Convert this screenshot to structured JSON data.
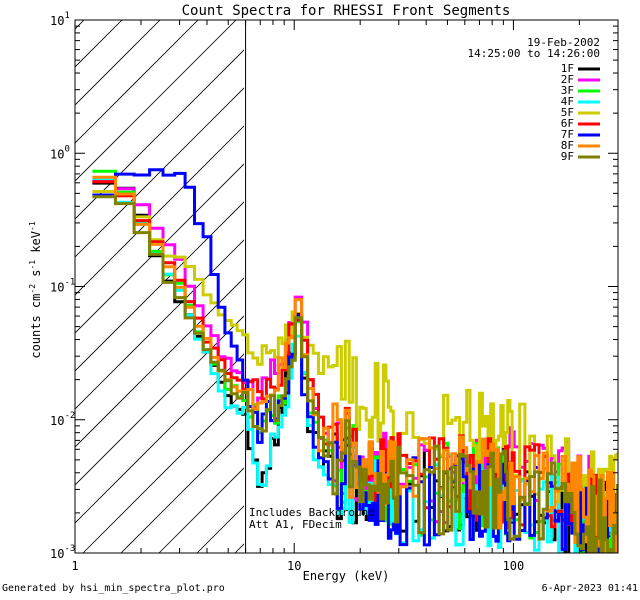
{
  "chart_data": {
    "type": "line",
    "title": "Count Spectra for RHESSI Front Segments",
    "xlabel": "Energy (keV)",
    "ylabel_main": "counts cm",
    "ylabel_sup1": "-2",
    "ylabel_mid1": " s",
    "ylabel_sup2": "-1",
    "ylabel_mid2": " keV",
    "ylabel_sup3": "-1",
    "x_scale": "log",
    "y_scale": "log",
    "xlim": [
      1,
      300
    ],
    "ylim": [
      0.001,
      10
    ],
    "x_ticks": [
      {
        "value": 1,
        "label": "1"
      },
      {
        "value": 10,
        "label": "10"
      },
      {
        "value": 100,
        "label": "100"
      }
    ],
    "y_ticks": [
      {
        "value": 10,
        "base": "10",
        "exp": "1"
      },
      {
        "value": 1,
        "base": "10",
        "exp": "0"
      },
      {
        "value": 0.1,
        "base": "10",
        "exp": "-1"
      },
      {
        "value": 0.01,
        "base": "10",
        "exp": "-2"
      },
      {
        "value": 0.001,
        "base": "10",
        "exp": "-3"
      }
    ],
    "date": "19-Feb-2002",
    "time_range": "14:25:00 to 14:26:00",
    "annotation_line1": "Includes Background",
    "annotation_line2": "Att A1, FDecim",
    "excluded_region_max_kev": 6,
    "series": [
      {
        "name": "1F",
        "color": "#000000",
        "points": [
          [
            1.2,
            0.68
          ],
          [
            1.6,
            0.6
          ],
          [
            2.0,
            0.33
          ],
          [
            2.5,
            0.15
          ],
          [
            3.0,
            0.085
          ],
          [
            3.5,
            0.05
          ],
          [
            4.0,
            0.03
          ],
          [
            4.5,
            0.022
          ],
          [
            5.0,
            0.016
          ],
          [
            5.5,
            0.012
          ],
          [
            6.0,
            0.01
          ],
          [
            7.0,
            0.004
          ],
          [
            8.0,
            0.006
          ],
          [
            9.0,
            0.013
          ],
          [
            10.5,
            0.06
          ],
          [
            11.5,
            0.012
          ],
          [
            13,
            0.005
          ],
          [
            15,
            0.004
          ],
          [
            20,
            0.003
          ],
          [
            30,
            0.003
          ],
          [
            50,
            0.0028
          ],
          [
            80,
            0.003
          ],
          [
            120,
            0.0025
          ],
          [
            200,
            0.002
          ],
          [
            280,
            0.0015
          ]
        ]
      },
      {
        "name": "2F",
        "color": "#ff00ff",
        "points": [
          [
            1.2,
            0.72
          ],
          [
            1.6,
            0.6
          ],
          [
            2.0,
            0.45
          ],
          [
            2.5,
            0.25
          ],
          [
            3.0,
            0.15
          ],
          [
            3.5,
            0.08
          ],
          [
            4.0,
            0.05
          ],
          [
            4.5,
            0.035
          ],
          [
            5.0,
            0.028
          ],
          [
            6.0,
            0.02
          ],
          [
            7.0,
            0.014
          ],
          [
            8.0,
            0.025
          ],
          [
            9.0,
            0.03
          ],
          [
            10.5,
            0.085
          ],
          [
            11.5,
            0.03
          ],
          [
            13,
            0.01
          ],
          [
            15,
            0.007
          ],
          [
            20,
            0.005
          ],
          [
            30,
            0.004
          ],
          [
            50,
            0.0035
          ],
          [
            80,
            0.004
          ],
          [
            120,
            0.004
          ],
          [
            200,
            0.003
          ],
          [
            280,
            0.002
          ]
        ]
      },
      {
        "name": "3F",
        "color": "#00ff00",
        "points": [
          [
            1.2,
            1.05
          ],
          [
            1.6,
            0.55
          ],
          [
            2.0,
            0.32
          ],
          [
            2.5,
            0.16
          ],
          [
            3.0,
            0.1
          ],
          [
            3.5,
            0.06
          ],
          [
            4.0,
            0.035
          ],
          [
            4.5,
            0.025
          ],
          [
            5.0,
            0.018
          ],
          [
            6.0,
            0.014
          ],
          [
            7.0,
            0.01
          ],
          [
            8.0,
            0.01
          ],
          [
            9.0,
            0.015
          ],
          [
            10.5,
            0.06
          ],
          [
            11.5,
            0.015
          ],
          [
            13,
            0.007
          ],
          [
            15,
            0.005
          ],
          [
            20,
            0.004
          ],
          [
            30,
            0.003
          ],
          [
            50,
            0.003
          ],
          [
            80,
            0.003
          ],
          [
            120,
            0.0025
          ],
          [
            200,
            0.002
          ],
          [
            280,
            0.0012
          ]
        ]
      },
      {
        "name": "4F",
        "color": "#00ffff",
        "points": [
          [
            1.2,
            0.9
          ],
          [
            1.6,
            0.5
          ],
          [
            2.0,
            0.3
          ],
          [
            2.5,
            0.15
          ],
          [
            3.0,
            0.09
          ],
          [
            3.5,
            0.05
          ],
          [
            4.0,
            0.03
          ],
          [
            4.5,
            0.02
          ],
          [
            5.0,
            0.012
          ],
          [
            6.0,
            0.012
          ],
          [
            7.0,
            0.003
          ],
          [
            8.0,
            0.008
          ],
          [
            9.0,
            0.012
          ],
          [
            10.5,
            0.05
          ],
          [
            11.5,
            0.012
          ],
          [
            13,
            0.005
          ],
          [
            15,
            0.004
          ],
          [
            20,
            0.003
          ],
          [
            30,
            0.0025
          ],
          [
            50,
            0.0025
          ],
          [
            80,
            0.0022
          ],
          [
            120,
            0.002
          ],
          [
            200,
            0.0018
          ],
          [
            280,
            0.0012
          ]
        ]
      },
      {
        "name": "5F",
        "color": "#cccc00",
        "points": [
          [
            1.2,
            0.6
          ],
          [
            1.6,
            0.5
          ],
          [
            2.0,
            0.32
          ],
          [
            2.5,
            0.2
          ],
          [
            3.0,
            0.16
          ],
          [
            3.5,
            0.13
          ],
          [
            4.0,
            0.085
          ],
          [
            4.5,
            0.07
          ],
          [
            5.0,
            0.06
          ],
          [
            5.5,
            0.045
          ],
          [
            6.0,
            0.04
          ],
          [
            7.0,
            0.032
          ],
          [
            8.0,
            0.035
          ],
          [
            9.0,
            0.04
          ],
          [
            10.5,
            0.07
          ],
          [
            11.5,
            0.04
          ],
          [
            13,
            0.03
          ],
          [
            15,
            0.025
          ],
          [
            20,
            0.015
          ],
          [
            30,
            0.01
          ],
          [
            50,
            0.008
          ],
          [
            80,
            0.007
          ],
          [
            120,
            0.006
          ],
          [
            200,
            0.004
          ],
          [
            280,
            0.003
          ]
        ]
      },
      {
        "name": "6F",
        "color": "#ff0000",
        "points": [
          [
            1.2,
            0.75
          ],
          [
            1.6,
            0.55
          ],
          [
            2.0,
            0.35
          ],
          [
            2.5,
            0.18
          ],
          [
            3.0,
            0.11
          ],
          [
            3.5,
            0.065
          ],
          [
            4.0,
            0.04
          ],
          [
            4.5,
            0.03
          ],
          [
            5.0,
            0.022
          ],
          [
            6.0,
            0.018
          ],
          [
            7.0,
            0.015
          ],
          [
            8.0,
            0.02
          ],
          [
            9.0,
            0.025
          ],
          [
            10.5,
            0.075
          ],
          [
            11.5,
            0.025
          ],
          [
            13,
            0.01
          ],
          [
            15,
            0.007
          ],
          [
            20,
            0.005
          ],
          [
            30,
            0.004
          ],
          [
            50,
            0.0035
          ],
          [
            80,
            0.0035
          ],
          [
            120,
            0.003
          ],
          [
            200,
            0.0025
          ],
          [
            280,
            0.0018
          ]
        ]
      },
      {
        "name": "7F",
        "color": "#0000ff",
        "points": [
          [
            1.2,
            0.48
          ],
          [
            1.5,
            0.55
          ],
          [
            1.8,
            0.7
          ],
          [
            2.2,
            0.72
          ],
          [
            2.6,
            0.75
          ],
          [
            3.0,
            0.7
          ],
          [
            3.3,
            0.6
          ],
          [
            3.6,
            0.35
          ],
          [
            4.0,
            0.22
          ],
          [
            4.4,
            0.1
          ],
          [
            4.8,
            0.06
          ],
          [
            5.2,
            0.04
          ],
          [
            5.6,
            0.03
          ],
          [
            6.0,
            0.02
          ],
          [
            6.5,
            0.012
          ],
          [
            7.0,
            0.008
          ],
          [
            8.0,
            0.012
          ],
          [
            9.0,
            0.015
          ],
          [
            10.5,
            0.05
          ],
          [
            11.5,
            0.012
          ],
          [
            13,
            0.006
          ],
          [
            15,
            0.004
          ],
          [
            20,
            0.003
          ],
          [
            30,
            0.0025
          ],
          [
            50,
            0.0025
          ],
          [
            80,
            0.0025
          ],
          [
            120,
            0.0022
          ],
          [
            200,
            0.002
          ],
          [
            280,
            0.0015
          ]
        ]
      },
      {
        "name": "8F",
        "color": "#ff8800",
        "points": [
          [
            1.2,
            0.8
          ],
          [
            1.6,
            0.6
          ],
          [
            2.0,
            0.3
          ],
          [
            2.5,
            0.17
          ],
          [
            3.0,
            0.1
          ],
          [
            3.5,
            0.06
          ],
          [
            4.0,
            0.04
          ],
          [
            4.5,
            0.028
          ],
          [
            5.0,
            0.02
          ],
          [
            6.0,
            0.016
          ],
          [
            7.0,
            0.012
          ],
          [
            8.0,
            0.02
          ],
          [
            9.0,
            0.025
          ],
          [
            10.5,
            0.07
          ],
          [
            11.5,
            0.02
          ],
          [
            13,
            0.008
          ],
          [
            15,
            0.006
          ],
          [
            20,
            0.005
          ],
          [
            30,
            0.004
          ],
          [
            50,
            0.004
          ],
          [
            80,
            0.0035
          ],
          [
            120,
            0.003
          ],
          [
            200,
            0.0025
          ],
          [
            280,
            0.0018
          ]
        ]
      },
      {
        "name": "9F",
        "color": "#808000",
        "points": [
          [
            1.2,
            0.55
          ],
          [
            1.6,
            0.45
          ],
          [
            2.0,
            0.25
          ],
          [
            2.5,
            0.14
          ],
          [
            3.0,
            0.085
          ],
          [
            3.5,
            0.05
          ],
          [
            4.0,
            0.035
          ],
          [
            4.5,
            0.025
          ],
          [
            5.0,
            0.018
          ],
          [
            6.0,
            0.015
          ],
          [
            7.0,
            0.01
          ],
          [
            8.0,
            0.012
          ],
          [
            9.0,
            0.015
          ],
          [
            10.5,
            0.055
          ],
          [
            11.5,
            0.015
          ],
          [
            13,
            0.007
          ],
          [
            15,
            0.005
          ],
          [
            20,
            0.004
          ],
          [
            30,
            0.003
          ],
          [
            50,
            0.003
          ],
          [
            80,
            0.003
          ],
          [
            120,
            0.0025
          ],
          [
            200,
            0.002
          ],
          [
            280,
            0.0015
          ]
        ]
      }
    ]
  },
  "footer": {
    "generated_by": "Generated by hsi_min_spectra_plot.pro",
    "timestamp": "6-Apr-2023 01:41"
  }
}
